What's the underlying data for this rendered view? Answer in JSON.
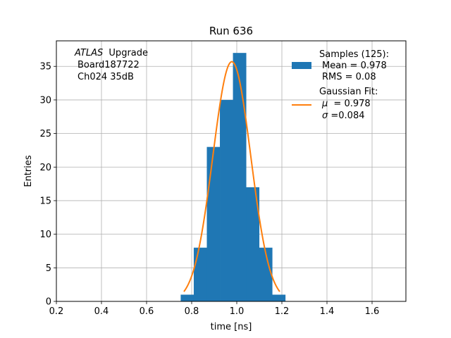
{
  "chart_data": {
    "type": "bar",
    "title": "Run 636",
    "xlabel": "time [ns]",
    "ylabel": "Entries",
    "xlim": [
      0.2,
      1.75
    ],
    "ylim": [
      0,
      38.8
    ],
    "grid": true,
    "x_ticks": [
      0.2,
      0.4,
      0.6,
      0.8,
      1.0,
      1.2,
      1.4,
      1.6
    ],
    "x_tick_labels": [
      "0.2",
      "0.4",
      "0.6",
      "0.8",
      "1.0",
      "1.2",
      "1.4",
      "1.6"
    ],
    "y_ticks": [
      0,
      5,
      10,
      15,
      20,
      25,
      30,
      35
    ],
    "y_tick_labels": [
      "0",
      "5",
      "10",
      "15",
      "20",
      "25",
      "30",
      "35"
    ],
    "annotation": {
      "atlas": "ATLAS",
      "upgrade": "Upgrade",
      "board": "Board187722",
      "channel": "Ch024 35dB"
    },
    "histogram": {
      "bin_edges": [
        0.7513,
        0.8092,
        0.8672,
        0.9251,
        0.983,
        1.041,
        1.0989,
        1.1568,
        1.2148
      ],
      "counts": [
        1,
        8,
        23,
        30,
        37,
        17,
        8,
        1
      ],
      "color": "#1f77b4"
    },
    "gaussian_fit": {
      "amplitude": 35.7,
      "mu": 0.978,
      "sigma": 0.084,
      "x_range": [
        0.7655,
        1.1905
      ],
      "color": "#ff7f0e"
    },
    "legend": {
      "placement": "top-right",
      "samples_lines": [
        "Samples (125):",
        "Mean = 0.978",
        "RMS = 0.08"
      ],
      "fit_lines": [
        "Gaussian Fit:",
        "= 0.978",
        "=0.084"
      ],
      "mu_symbol": "μ",
      "sigma_symbol": "σ"
    }
  }
}
